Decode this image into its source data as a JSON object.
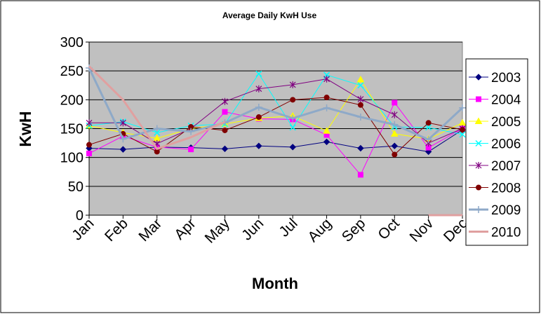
{
  "chart_data": {
    "type": "line",
    "title": "Average Daily KwH Use",
    "xlabel": "Month",
    "ylabel": "KwH",
    "categories": [
      "Jan",
      "Feb",
      "Mar",
      "Apr",
      "May",
      "Jun",
      "Jul",
      "Aug",
      "Sep",
      "Oct",
      "Nov",
      "Dec"
    ],
    "ylim": [
      0,
      300
    ],
    "yticks": [
      0,
      50,
      100,
      150,
      200,
      250,
      300
    ],
    "grid": "horizontal",
    "legend_position": "right",
    "plot_background": "#c0c0c0",
    "series": [
      {
        "name": "2003",
        "color": "#000080",
        "marker": "diamond",
        "width": 1,
        "values": [
          116,
          114,
          118,
          117,
          115,
          120,
          118,
          127,
          116,
          120,
          110,
          148
        ]
      },
      {
        "name": "2004",
        "color": "#ff00ff",
        "marker": "square",
        "width": 1,
        "values": [
          107,
          137,
          118,
          114,
          179,
          167,
          166,
          139,
          70,
          195,
          117,
          150
        ]
      },
      {
        "name": "2005",
        "color": "#ffff00",
        "marker": "triangle",
        "width": 1,
        "values": [
          155,
          143,
          133,
          150,
          158,
          168,
          172,
          146,
          235,
          141,
          132,
          160
        ]
      },
      {
        "name": "2006",
        "color": "#00ffff",
        "marker": "x",
        "width": 1,
        "values": [
          155,
          162,
          143,
          155,
          158,
          245,
          152,
          243,
          225,
          153,
          152,
          140
        ]
      },
      {
        "name": "2007",
        "color": "#800080",
        "marker": "star",
        "width": 1,
        "values": [
          160,
          160,
          124,
          150,
          197,
          219,
          226,
          236,
          201,
          174,
          125,
          150
        ]
      },
      {
        "name": "2008",
        "color": "#800000",
        "marker": "circle",
        "width": 1,
        "values": [
          122,
          141,
          110,
          153,
          147,
          170,
          200,
          204,
          191,
          105,
          160,
          148
        ]
      },
      {
        "name": "2009",
        "color": "#8ea9c8",
        "marker": "plus",
        "width": 3,
        "values": [
          255,
          132,
          150,
          145,
          160,
          187,
          168,
          186,
          170,
          157,
          131,
          186
        ]
      },
      {
        "name": "2010",
        "color": "#e0a0a0",
        "marker": "none",
        "width": 3,
        "values": [
          258,
          200,
          115,
          135,
          162,
          null,
          null,
          null,
          null,
          null,
          0,
          0
        ]
      }
    ]
  }
}
